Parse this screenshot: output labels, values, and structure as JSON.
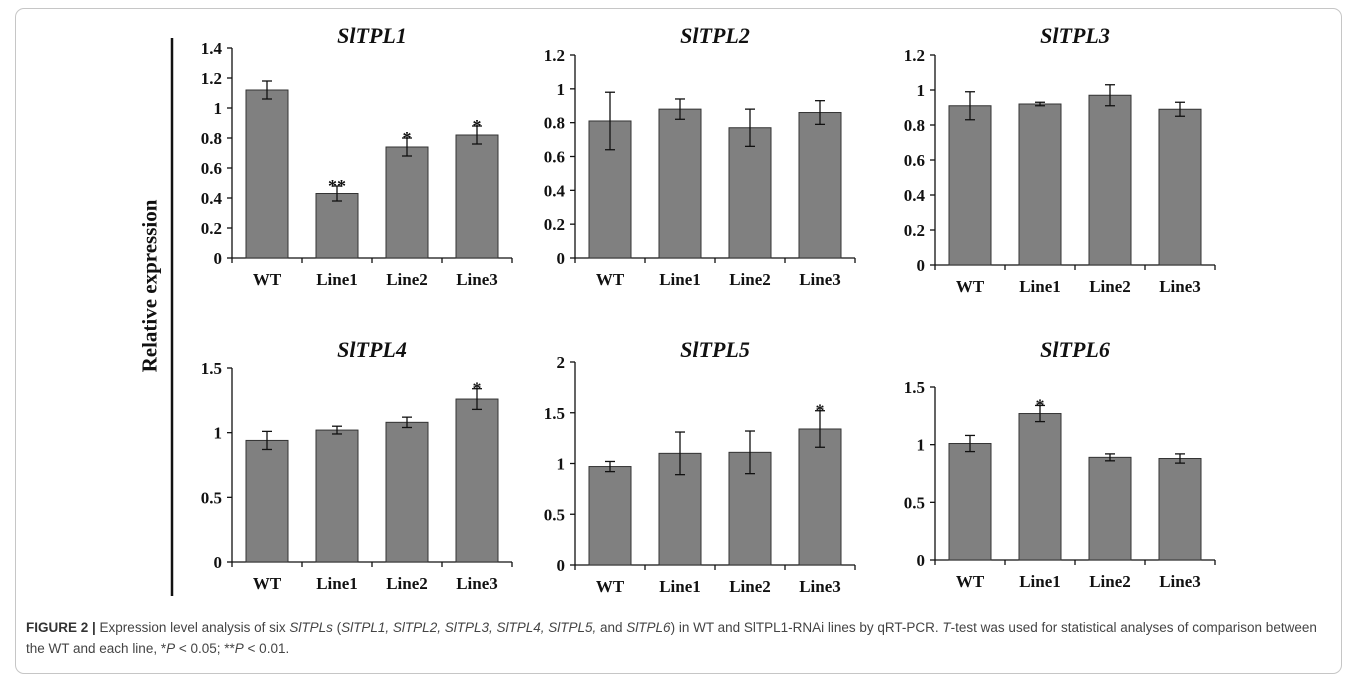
{
  "figure": {
    "y_axis_label": "Relative expression",
    "caption": {
      "label": "FIGURE 2 |",
      "seg1": " Expression level analysis of six ",
      "seg2": "SlTPLs",
      "seg3": " (",
      "seg4": "SlTPL1, SlTPL2, SlTPL3, SlTPL4, SlTPL5,",
      "seg5": " and ",
      "seg6": "SlTPL6",
      "seg7": ") in WT and SlTPL1-RNAi lines by qRT-PCR. ",
      "seg8": "T",
      "seg9": "-test was used for statistical analyses of comparison between the WT and each line, *",
      "seg10": "P",
      "seg11": " < 0.05; **",
      "seg12": "P",
      "seg13": " < 0.01."
    }
  },
  "colors": {
    "bar": "#808080",
    "bar_stroke": "#333333",
    "axis": "#111111"
  },
  "chart_data": [
    {
      "type": "bar",
      "title": "SlTPL1",
      "categories": [
        "WT",
        "Line1",
        "Line2",
        "Line3"
      ],
      "values": [
        1.12,
        0.43,
        0.74,
        0.82
      ],
      "errors": [
        0.06,
        0.05,
        0.06,
        0.06
      ],
      "significance": [
        "",
        "**",
        "*",
        "*"
      ],
      "ylim": [
        0,
        1.4
      ],
      "ticks": [
        "0",
        "0.2",
        "0.4",
        "0.6",
        "0.8",
        "1",
        "1.2",
        "1.4"
      ]
    },
    {
      "type": "bar",
      "title": "SlTPL2",
      "categories": [
        "WT",
        "Line1",
        "Line2",
        "Line3"
      ],
      "values": [
        0.81,
        0.88,
        0.77,
        0.86
      ],
      "errors": [
        0.17,
        0.06,
        0.11,
        0.07
      ],
      "significance": [
        "",
        "",
        "",
        ""
      ],
      "ylim": [
        0,
        1.2
      ],
      "ticks": [
        "0",
        "0.2",
        "0.4",
        "0.6",
        "0.8",
        "1",
        "1.2"
      ]
    },
    {
      "type": "bar",
      "title": "SlTPL3",
      "categories": [
        "WT",
        "Line1",
        "Line2",
        "Line3"
      ],
      "values": [
        0.91,
        0.92,
        0.97,
        0.89
      ],
      "errors": [
        0.08,
        0.01,
        0.06,
        0.04
      ],
      "significance": [
        "",
        "",
        "",
        ""
      ],
      "ylim": [
        0,
        1.2
      ],
      "ticks": [
        "0",
        "0.2",
        "0.4",
        "0.6",
        "0.8",
        "1",
        "1.2"
      ]
    },
    {
      "type": "bar",
      "title": "SlTPL4",
      "categories": [
        "WT",
        "Line1",
        "Line2",
        "Line3"
      ],
      "values": [
        0.94,
        1.02,
        1.08,
        1.26
      ],
      "errors": [
        0.07,
        0.03,
        0.04,
        0.08
      ],
      "significance": [
        "",
        "",
        "",
        "*"
      ],
      "ylim": [
        0,
        1.5
      ],
      "ticks": [
        "0",
        "0.5",
        "1",
        "1.5"
      ]
    },
    {
      "type": "bar",
      "title": "SlTPL5",
      "categories": [
        "WT",
        "Line1",
        "Line2",
        "Line3"
      ],
      "values": [
        0.97,
        1.1,
        1.11,
        1.34
      ],
      "errors": [
        0.05,
        0.21,
        0.21,
        0.18
      ],
      "significance": [
        "",
        "",
        "",
        "*"
      ],
      "ylim": [
        0,
        2
      ],
      "ticks": [
        "0",
        "0.5",
        "1",
        "1.5",
        "2"
      ]
    },
    {
      "type": "bar",
      "title": "SlTPL6",
      "categories": [
        "WT",
        "Line1",
        "Line2",
        "Line3"
      ],
      "values": [
        1.01,
        1.27,
        0.89,
        0.88
      ],
      "errors": [
        0.07,
        0.07,
        0.03,
        0.04
      ],
      "significance": [
        "",
        "*",
        "",
        ""
      ],
      "ylim": [
        0,
        1.5
      ],
      "ticks": [
        "0",
        "0.5",
        "1",
        "1.5"
      ]
    }
  ]
}
